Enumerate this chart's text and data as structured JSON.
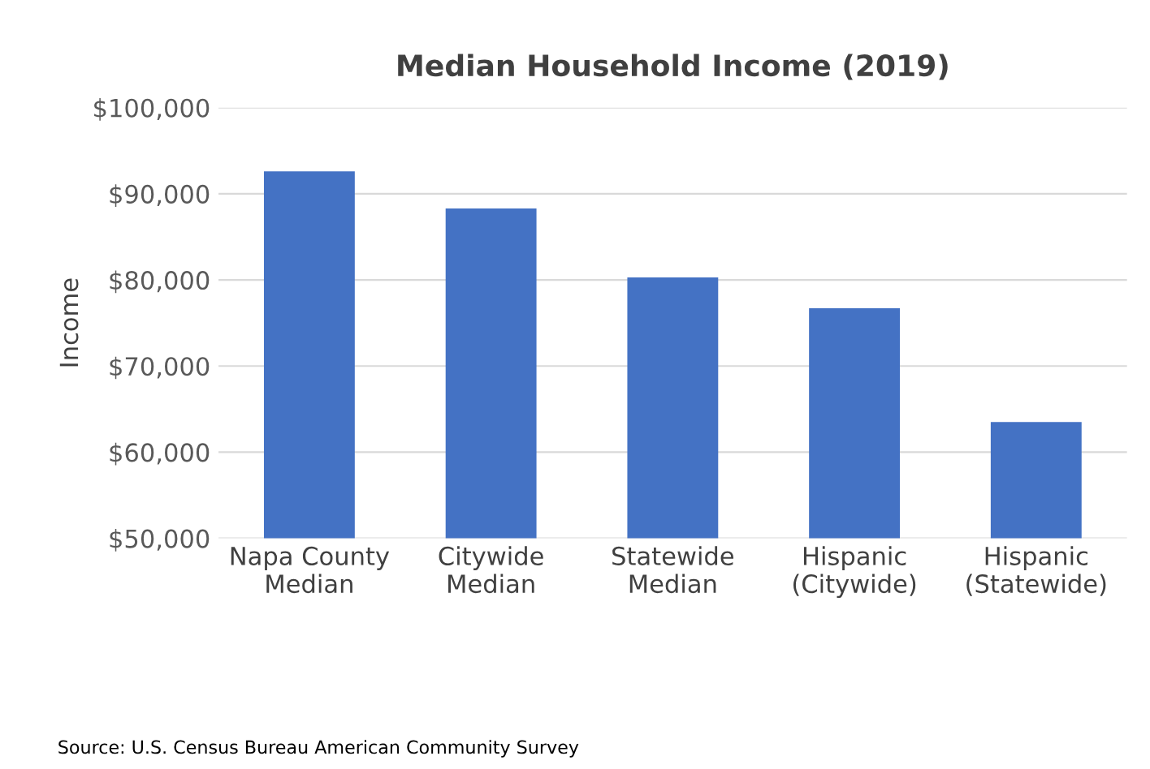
{
  "chart_data": {
    "type": "bar",
    "title": "Median Household Income (2019)",
    "ylabel": "Income",
    "categories": [
      "Napa County\nMedian",
      "Citywide\nMedian",
      "Statewide\nMedian",
      "Hispanic\n(Citywide)",
      "Hispanic\n(Statewide)"
    ],
    "values": [
      92600,
      88300,
      80300,
      76700,
      63500
    ],
    "color": "#4472c4",
    "ylim": [
      50000,
      100000
    ],
    "yticks": [
      {
        "value": 50000,
        "label": "$50,000"
      },
      {
        "value": 60000,
        "label": "$60,000"
      },
      {
        "value": 70000,
        "label": "$70,000"
      },
      {
        "value": 80000,
        "label": "$80,000"
      },
      {
        "value": 90000,
        "label": "$90,000"
      },
      {
        "value": 100000,
        "label": "$100,000"
      }
    ],
    "grid": "y",
    "annotations": [
      "Source: U.S. Census Bureau American Community Survey"
    ]
  }
}
